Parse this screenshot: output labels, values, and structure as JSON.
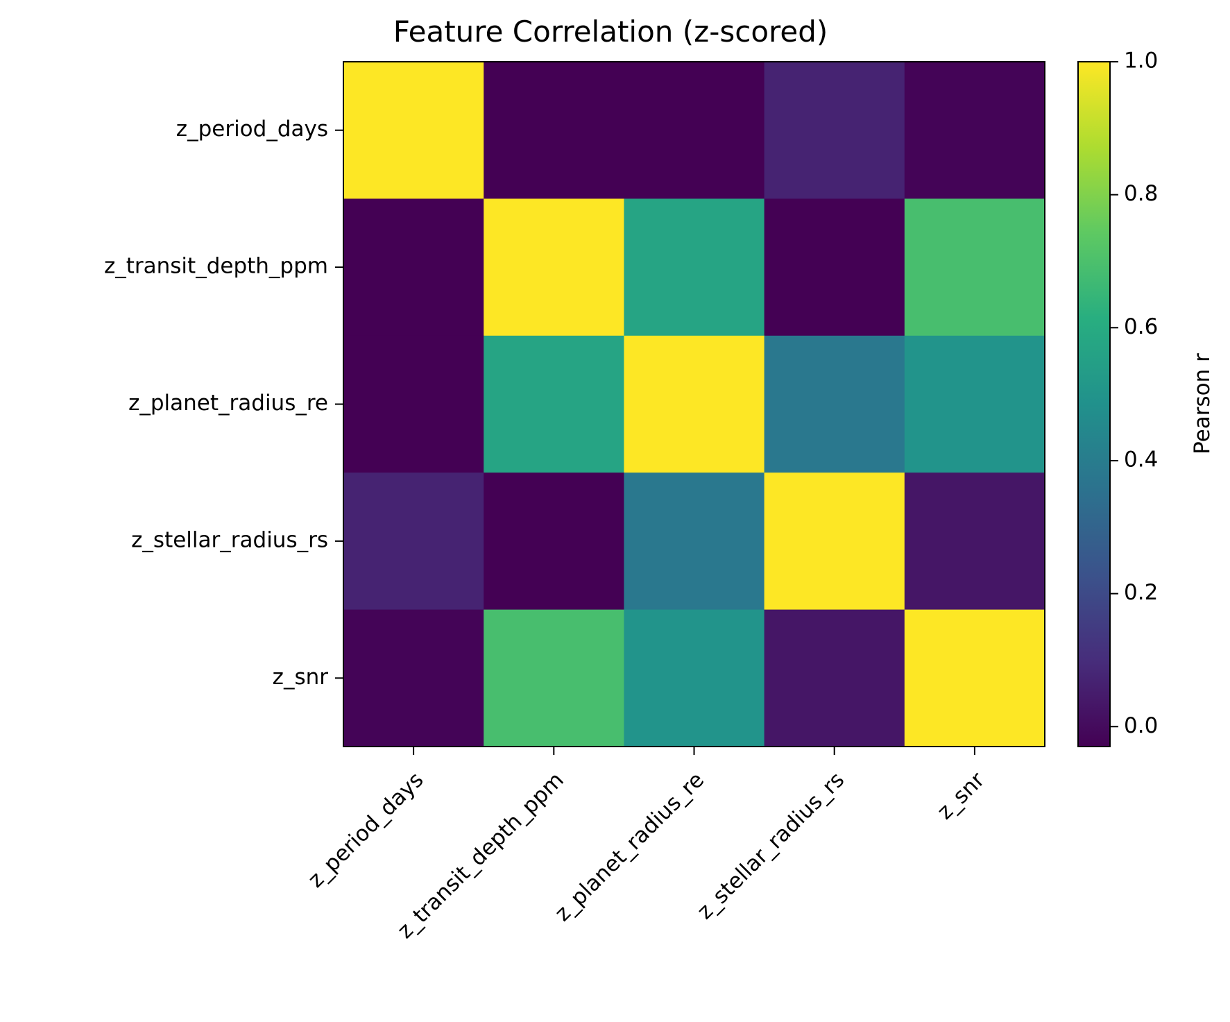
{
  "chart_data": {
    "type": "heatmap",
    "title": "Feature Correlation (z-scored)",
    "rows": [
      "z_period_days",
      "z_transit_depth_ppm",
      "z_planet_radius_re",
      "z_stellar_radius_rs",
      "z_snr"
    ],
    "columns": [
      "z_period_days",
      "z_transit_depth_ppm",
      "z_planet_radius_re",
      "z_stellar_radius_rs",
      "z_snr"
    ],
    "values": [
      [
        1.0,
        -0.03,
        -0.03,
        0.07,
        -0.02
      ],
      [
        -0.03,
        1.0,
        0.57,
        -0.03,
        0.69
      ],
      [
        -0.03,
        0.57,
        1.0,
        0.38,
        0.5
      ],
      [
        0.07,
        -0.03,
        0.38,
        1.0,
        0.03
      ],
      [
        -0.02,
        0.69,
        0.5,
        0.03,
        1.0
      ]
    ],
    "colormap": "viridis",
    "colorbar": {
      "label": "Pearson r",
      "range": [
        -0.03,
        1.0
      ],
      "ticks": [
        "0.0",
        "0.2",
        "0.4",
        "0.6",
        "0.8",
        "1.0"
      ]
    }
  }
}
